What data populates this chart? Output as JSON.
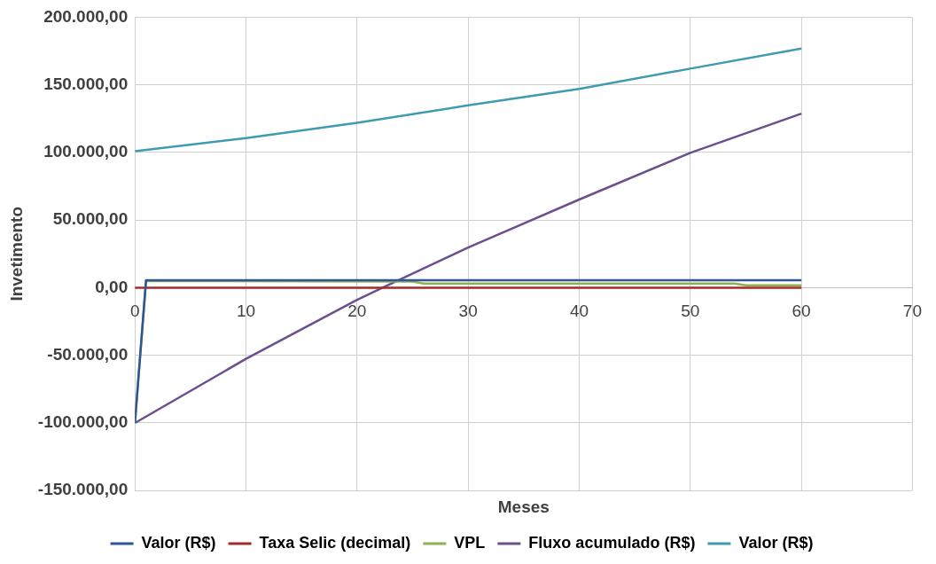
{
  "chart_data": {
    "type": "line",
    "xlabel": "Meses",
    "ylabel": "Invetimento",
    "xlim": [
      0,
      70
    ],
    "xticks": [
      0,
      10,
      20,
      30,
      40,
      50,
      60,
      70
    ],
    "ylim": [
      -150000,
      200000
    ],
    "yticks": [
      {
        "value": -150000,
        "label": "-150.000,00"
      },
      {
        "value": -100000,
        "label": "-100.000,00"
      },
      {
        "value": -50000,
        "label": "-50.000,00"
      },
      {
        "value": 0,
        "label": "0,00"
      },
      {
        "value": 50000,
        "label": "50.000,00"
      },
      {
        "value": 100000,
        "label": "100.000,00"
      },
      {
        "value": 150000,
        "label": "150.000,00"
      },
      {
        "value": 200000,
        "label": "200.000,00"
      }
    ],
    "grid": true,
    "legend": "bottom",
    "marker": "none",
    "series": [
      {
        "name": "Valor (R$)",
        "color": "#2f5597",
        "x": [
          0,
          1,
          60
        ],
        "values": [
          -100000,
          5500,
          5500
        ]
      },
      {
        "name": "Taxa Selic (decimal)",
        "color": "#a52a2a",
        "x": [
          0,
          60
        ],
        "values": [
          0,
          0
        ]
      },
      {
        "name": "VPL",
        "color": "#8fb04f",
        "x": [
          0,
          1,
          25,
          26,
          54,
          55,
          60
        ],
        "values": [
          -100000,
          5000,
          4500,
          3000,
          3000,
          1700,
          1700
        ]
      },
      {
        "name": "Fluxo acumulado (R$)",
        "color": "#6b4f8f",
        "x": [
          0,
          10,
          20,
          22.3,
          30,
          40,
          50,
          60
        ],
        "values": [
          -100000,
          -52600,
          -9000,
          0,
          29700,
          65200,
          99700,
          128700
        ]
      },
      {
        "name": "Valor (R$)",
        "color": "#3f9bb0",
        "x": [
          0,
          10,
          20,
          30,
          40,
          50,
          60
        ],
        "values": [
          101000,
          110600,
          121900,
          134800,
          147000,
          162000,
          176800
        ]
      }
    ]
  }
}
